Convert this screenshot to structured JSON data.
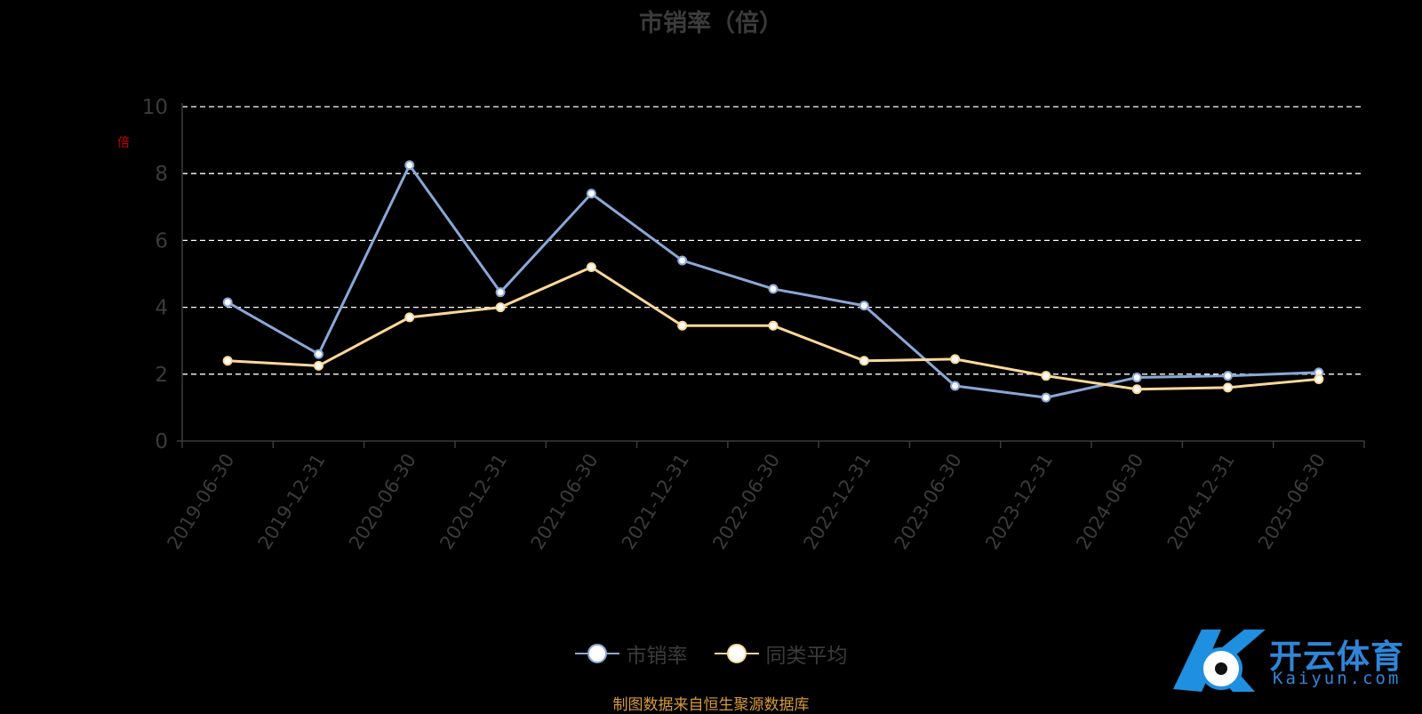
{
  "chart_data": {
    "type": "line",
    "title": "市销率（倍）",
    "unit_label": "倍",
    "categories": [
      "2019-06-30",
      "2019-12-31",
      "2020-06-30",
      "2020-12-31",
      "2021-06-30",
      "2021-12-31",
      "2022-06-30",
      "2022-12-31",
      "2023-06-30",
      "2023-12-31",
      "2024-06-30",
      "2024-12-31",
      "2025-06-30"
    ],
    "series": [
      {
        "name": "市销率",
        "color": "#8aa7d6",
        "values": [
          4.15,
          2.6,
          8.25,
          4.45,
          7.4,
          5.4,
          4.55,
          4.05,
          1.65,
          1.3,
          1.9,
          1.95,
          2.05
        ]
      },
      {
        "name": "同类平均",
        "color": "#fdd899",
        "values": [
          2.4,
          2.25,
          3.7,
          4.0,
          5.2,
          3.45,
          3.45,
          2.4,
          2.45,
          1.95,
          1.55,
          1.6,
          1.85
        ]
      }
    ],
    "ylim": [
      0,
      10
    ],
    "yticks": [
      0,
      2,
      4,
      6,
      8,
      10
    ],
    "grid": true,
    "legend_position": "bottom-center"
  },
  "source_note": "制图数据来自恒生聚源数据库",
  "logo": {
    "name": "开云体育",
    "sub": "Kaiyun.com"
  }
}
